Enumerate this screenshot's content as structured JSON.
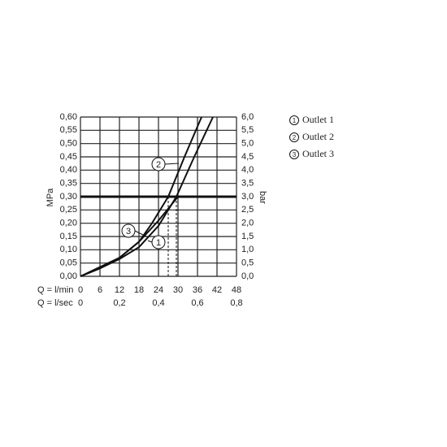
{
  "chart_data": {
    "type": "line",
    "x_label": "Q = l/min",
    "x2_label": "Q = l/sec",
    "y_label": "MPa",
    "y2_label": "bar",
    "xlim": [
      0,
      48
    ],
    "xticks": [
      0,
      6,
      12,
      18,
      24,
      30,
      36,
      42,
      48
    ],
    "x2lim": [
      0,
      0.8
    ],
    "x2ticks": [
      0,
      {
        "value": 0.2,
        "label": "0,2"
      },
      {
        "value": 0.4,
        "label": "0,4"
      },
      {
        "value": 0.6,
        "label": "0,6"
      },
      {
        "value": 0.8,
        "label": "0,8"
      }
    ],
    "ylim": [
      0,
      0.6
    ],
    "yticks": [
      {
        "value": 0,
        "label": "0,00"
      },
      {
        "value": 0.05,
        "label": "0,05"
      },
      {
        "value": 0.1,
        "label": "0,10"
      },
      {
        "value": 0.15,
        "label": "0,15"
      },
      {
        "value": 0.2,
        "label": "0,20"
      },
      {
        "value": 0.25,
        "label": "0,25"
      },
      {
        "value": 0.3,
        "label": "0,30"
      },
      {
        "value": 0.35,
        "label": "0,35"
      },
      {
        "value": 0.4,
        "label": "0,40"
      },
      {
        "value": 0.45,
        "label": "0,45"
      },
      {
        "value": 0.5,
        "label": "0,50"
      },
      {
        "value": 0.55,
        "label": "0,55"
      },
      {
        "value": 0.6,
        "label": "0,60"
      }
    ],
    "y2lim": [
      0,
      6
    ],
    "y2ticks": [
      {
        "value": 0,
        "label": "0,0"
      },
      {
        "value": 0.5,
        "label": "0,5"
      },
      {
        "value": 1,
        "label": "1,0"
      },
      {
        "value": 1.5,
        "label": "1,5"
      },
      {
        "value": 2,
        "label": "2,0"
      },
      {
        "value": 2.5,
        "label": "2,5"
      },
      {
        "value": 3,
        "label": "3,0"
      },
      {
        "value": 3.5,
        "label": "3,5"
      },
      {
        "value": 4,
        "label": "4,0"
      },
      {
        "value": 4.5,
        "label": "4,5"
      },
      {
        "value": 5,
        "label": "5,0"
      },
      {
        "value": 5.5,
        "label": "5,5"
      },
      {
        "value": 6,
        "label": "6,0"
      }
    ],
    "grid": true,
    "reference_line": 0.3,
    "color": "#111111",
    "series": [
      {
        "name": "Outlet 1",
        "marker_label": "1",
        "x": [
          0,
          6,
          12,
          18,
          24,
          29.5,
          35,
          40.75
        ],
        "values": [
          0,
          0.03,
          0.065,
          0.11,
          0.19,
          0.3,
          0.45,
          0.6
        ]
      },
      {
        "name": "Outlet 2",
        "marker_label": "2",
        "x": [
          0,
          6,
          12,
          18,
          22,
          27,
          32,
          37.25
        ],
        "values": [
          0,
          0.035,
          0.07,
          0.13,
          0.2,
          0.3,
          0.45,
          0.6
        ]
      },
      {
        "name": "Outlet 3",
        "marker_label": "3",
        "x": [
          0,
          6,
          12,
          18,
          24,
          30
        ],
        "values": [
          0,
          0.03,
          0.07,
          0.13,
          0.21,
          0.3
        ]
      }
    ]
  }
}
